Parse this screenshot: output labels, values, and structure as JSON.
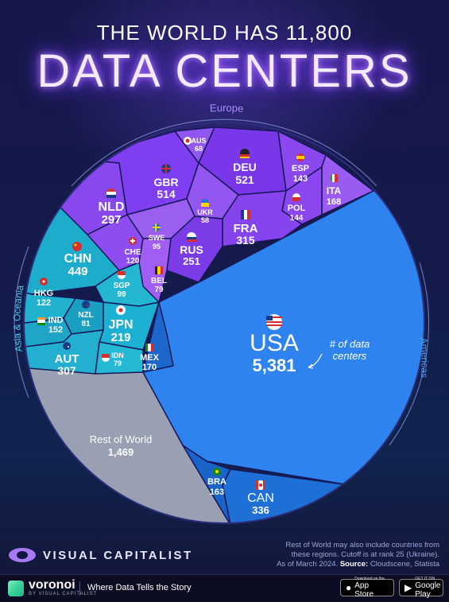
{
  "title": {
    "line1": "THE WORLD HAS 11,800",
    "line2": "DATA CENTERS"
  },
  "colors": {
    "europe": "#7a35e8",
    "asia": "#1fa9c9",
    "americas": "#1f7ce8",
    "rest": "#9aa0b4",
    "background": "#15163f"
  },
  "chart_data": {
    "type": "voronoi-treemap",
    "title": "THE WORLD HAS 11,800 DATA CENTERS",
    "total": 11800,
    "regions": [
      {
        "name": "Europe",
        "countries": [
          {
            "code": "AUS",
            "value": 68
          },
          {
            "code": "DEU",
            "value": 521
          },
          {
            "code": "ESP",
            "value": 143
          },
          {
            "code": "GBR",
            "value": 514
          },
          {
            "code": "ITA",
            "value": 168
          },
          {
            "code": "NLD",
            "value": 297
          },
          {
            "code": "POL",
            "value": 144
          },
          {
            "code": "UKR",
            "value": 58
          },
          {
            "code": "FRA",
            "value": 315
          },
          {
            "code": "SWE",
            "value": 95
          },
          {
            "code": "CHE",
            "value": 120
          },
          {
            "code": "RUS",
            "value": 251
          },
          {
            "code": "BEL",
            "value": 79
          }
        ]
      },
      {
        "name": "Asia & Oceania",
        "countries": [
          {
            "code": "CHN",
            "value": 449
          },
          {
            "code": "HKG",
            "value": 122
          },
          {
            "code": "SGP",
            "value": 99
          },
          {
            "code": "NZL",
            "value": 81
          },
          {
            "code": "IND",
            "value": 152
          },
          {
            "code": "JPN",
            "value": 219
          },
          {
            "code": "AUT",
            "value": 307
          },
          {
            "code": "IDN",
            "value": 79
          }
        ]
      },
      {
        "name": "Americas",
        "countries": [
          {
            "code": "MEX",
            "value": 170
          },
          {
            "code": "USA",
            "value": 5381
          },
          {
            "code": "BRA",
            "value": 163
          },
          {
            "code": "CAN",
            "value": 336
          }
        ]
      },
      {
        "name": "",
        "countries": [
          {
            "code": "Rest of World",
            "value": 1469
          }
        ]
      }
    ],
    "annotation": "# of data centers"
  },
  "labels": {
    "AUS": "AUS",
    "AUS_v": "68",
    "DEU": "DEU",
    "DEU_v": "521",
    "ESP": "ESP",
    "ESP_v": "143",
    "GBR": "GBR",
    "GBR_v": "514",
    "ITA": "ITA",
    "ITA_v": "168",
    "NLD": "NLD",
    "NLD_v": "297",
    "POL": "POL",
    "POL_v": "144",
    "UKR": "UKR",
    "UKR_v": "58",
    "FRA": "FRA",
    "FRA_v": "315",
    "SWE": "SWE",
    "SWE_v": "95",
    "CHE": "CHE",
    "CHE_v": "120",
    "RUS": "RUS",
    "RUS_v": "251",
    "BEL": "BEL",
    "BEL_v": "79",
    "CHN": "CHN",
    "CHN_v": "449",
    "HKG": "HKG",
    "HKG_v": "122",
    "SGP": "SGP",
    "SGP_v": "99",
    "NZL": "NZL",
    "NZL_v": "81",
    "IND": "IND",
    "IND_v": "152",
    "JPN": "JPN",
    "JPN_v": "219",
    "AUT": "AUT",
    "AUT_v": "307",
    "IDN": "IDN",
    "IDN_v": "79",
    "MEX": "MEX",
    "MEX_v": "170",
    "USA": "USA",
    "USA_v": "5,381",
    "BRA": "BRA",
    "BRA_v": "163",
    "CAN": "CAN",
    "CAN_v": "336",
    "ROW": "Rest of World",
    "ROW_v": "1,469",
    "annot1": "# of data",
    "annot2": "centers",
    "region_europe": "Europe",
    "region_asia": "Asia & Oceania",
    "region_americas": "Americas"
  },
  "footer": {
    "brand": "VISUAL CAPITALIST",
    "note_line1": "Rest of World may also include countries from",
    "note_line2": "these regions. Cutoff is at rank 25 (Ukraine).",
    "note_line3_prefix": "As of March 2024.",
    "note_source_label": "Source:",
    "note_source": "Cloudscene, Statista",
    "voronoi_name": "voronoi",
    "voronoi_sub": "BY VISUAL CAPITALIST",
    "tagline": "Where Data Tells the Story",
    "appstore_small": "Download on the",
    "appstore_big": "App Store",
    "googleplay_small": "GET IT ON",
    "googleplay_big": "Google Play"
  }
}
